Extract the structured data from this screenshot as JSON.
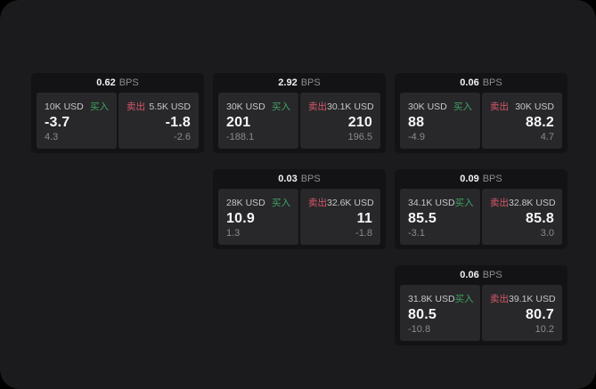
{
  "labels": {
    "bps": "BPS",
    "buy": "买入",
    "sell": "卖出"
  },
  "colors": {
    "buy": "#3fa463",
    "sell": "#d8566b",
    "page_bg": "#1b1b1d",
    "card_bg": "#131315",
    "panel_bg": "#28282a"
  },
  "cards": [
    {
      "bps": "0.62",
      "buy": {
        "amount": "10K USD",
        "value": "-3.7",
        "sub": "4.3"
      },
      "sell": {
        "amount": "5.5K USD",
        "value": "-1.8",
        "sub": "-2.6"
      }
    },
    {
      "bps": "2.92",
      "buy": {
        "amount": "30K USD",
        "value": "201",
        "sub": "-188.1"
      },
      "sell": {
        "amount": "30.1K USD",
        "value": "210",
        "sub": "196.5"
      }
    },
    {
      "bps": "0.06",
      "buy": {
        "amount": "30K USD",
        "value": "88",
        "sub": "-4.9"
      },
      "sell": {
        "amount": "30K USD",
        "value": "88.2",
        "sub": "4.7"
      }
    },
    {
      "bps": "0.03",
      "buy": {
        "amount": "28K USD",
        "value": "10.9",
        "sub": "1.3"
      },
      "sell": {
        "amount": "32.6K USD",
        "value": "11",
        "sub": "-1.8"
      }
    },
    {
      "bps": "0.09",
      "buy": {
        "amount": "34.1K USD",
        "value": "85.5",
        "sub": "-3.1"
      },
      "sell": {
        "amount": "32.8K USD",
        "value": "85.8",
        "sub": "3.0"
      }
    },
    {
      "bps": "0.06",
      "buy": {
        "amount": "31.8K USD",
        "value": "80.5",
        "sub": "-10.8"
      },
      "sell": {
        "amount": "39.1K USD",
        "value": "80.7",
        "sub": "10.2"
      }
    }
  ]
}
